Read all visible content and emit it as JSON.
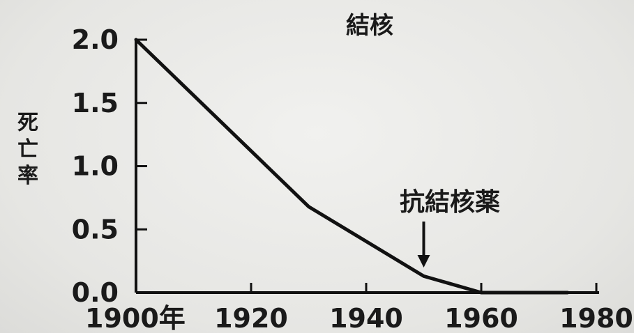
{
  "chart_data": {
    "type": "line",
    "title": "結核",
    "ylabel": "死亡率",
    "xlabel": "",
    "xlim": [
      1900,
      1980
    ],
    "ylim": [
      0,
      2.0
    ],
    "x_tick_labels": [
      "1900年",
      "1920",
      "1940",
      "1960",
      "1980"
    ],
    "x_ticks": [
      1900,
      1920,
      1940,
      1960,
      1980
    ],
    "y_tick_labels": [
      "2.0",
      "1.5",
      "1.0",
      "0.5",
      "0.0"
    ],
    "y_ticks": [
      2.0,
      1.5,
      1.0,
      0.5,
      0.0
    ],
    "grid": false,
    "series": [
      {
        "x": [
          1900,
          1930,
          1950,
          1960,
          1975
        ],
        "y": [
          2.0,
          0.68,
          0.13,
          0.0,
          0.0
        ]
      }
    ],
    "annotations": [
      {
        "text": "抗結核薬",
        "x": 1950,
        "arrow": true
      }
    ],
    "colors": {
      "line": "#111111",
      "axis": "#111111",
      "text": "#1a1a1a"
    }
  }
}
